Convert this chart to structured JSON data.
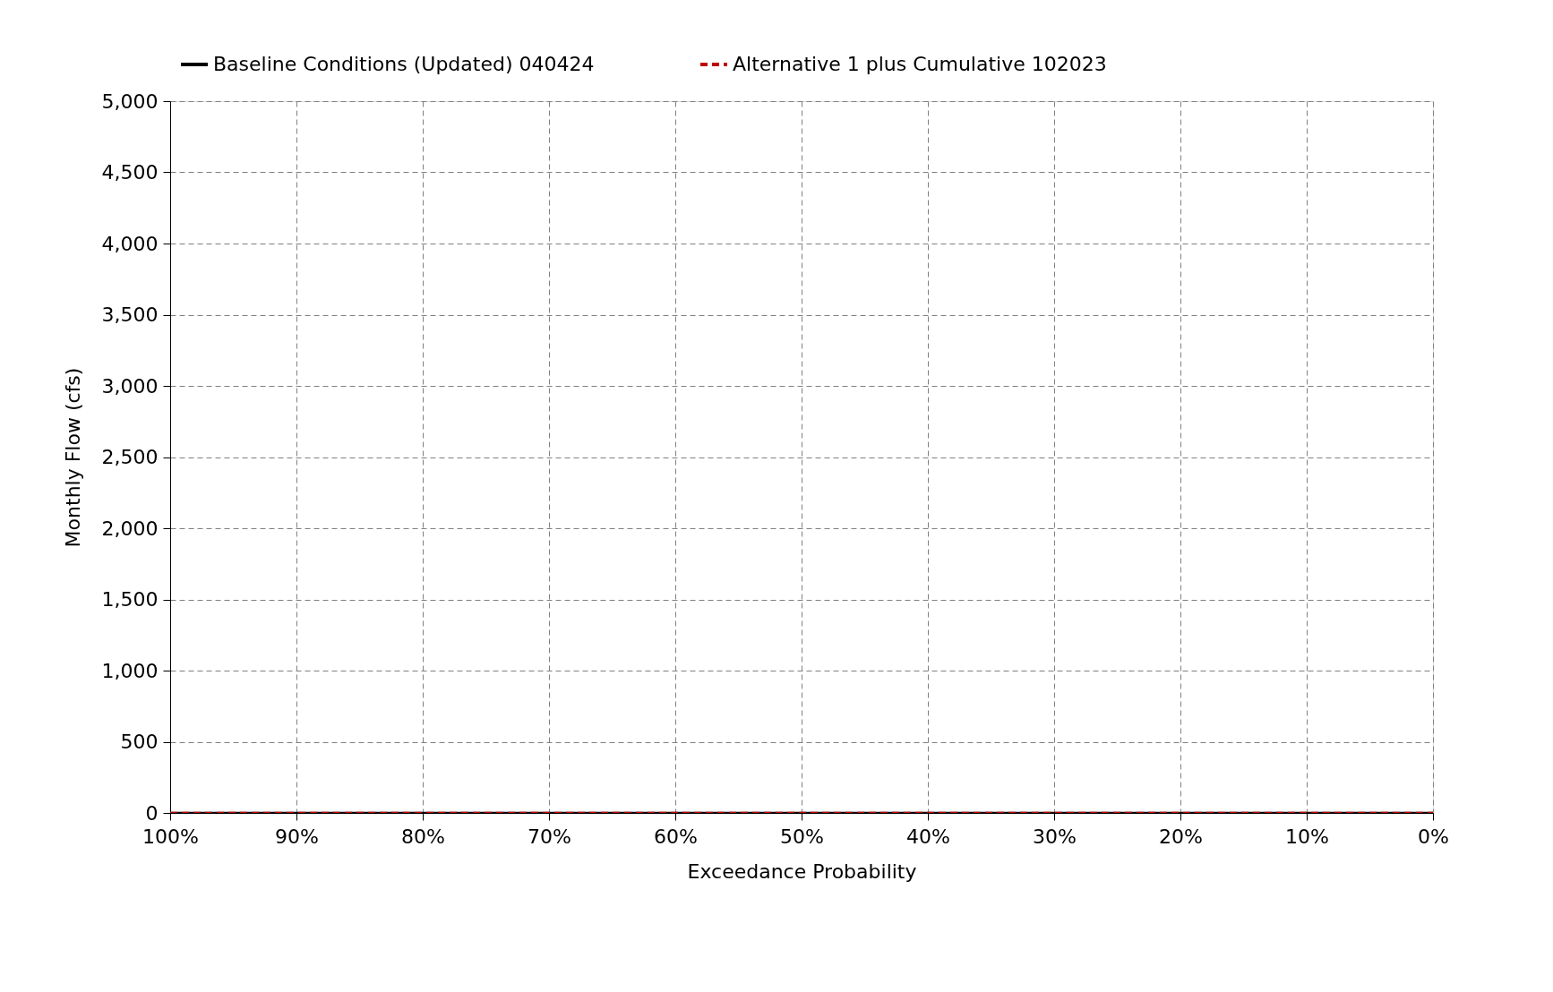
{
  "chart_data": {
    "type": "line",
    "xlabel": "Exceedance Probability",
    "ylabel": "Monthly Flow (cfs)",
    "x": [
      100,
      0
    ],
    "series": [
      {
        "name": "Baseline Conditions (Updated) 040424",
        "color": "#000000",
        "line_style": "solid",
        "values": [
          0,
          0
        ]
      },
      {
        "name": "Alternative 1 plus Cumulative 102023",
        "color": "#c00000",
        "line_style": "dashed",
        "values": [
          0,
          0
        ]
      }
    ],
    "xlim": [
      100,
      0
    ],
    "xticks": [
      {
        "value": 100,
        "label": "100%"
      },
      {
        "value": 90,
        "label": "90%"
      },
      {
        "value": 80,
        "label": "80%"
      },
      {
        "value": 70,
        "label": "70%"
      },
      {
        "value": 60,
        "label": "60%"
      },
      {
        "value": 50,
        "label": "50%"
      },
      {
        "value": 40,
        "label": "40%"
      },
      {
        "value": 30,
        "label": "30%"
      },
      {
        "value": 20,
        "label": "20%"
      },
      {
        "value": 10,
        "label": "10%"
      },
      {
        "value": 0,
        "label": "0%"
      }
    ],
    "ylim": [
      0,
      5000
    ],
    "yticks": [
      0,
      500,
      {
        "value": 1000,
        "label": "1,000"
      },
      {
        "value": 1500,
        "label": "1,500"
      },
      {
        "value": 2000,
        "label": "2,000"
      },
      {
        "value": 2500,
        "label": "2,500"
      },
      {
        "value": 3000,
        "label": "3,000"
      },
      {
        "value": 3500,
        "label": "3,500"
      },
      {
        "value": 4000,
        "label": "4,000"
      },
      {
        "value": 4500,
        "label": "4,500"
      },
      {
        "value": 5000,
        "label": "5,000"
      }
    ],
    "grid": true,
    "legend": "top",
    "marker": "none"
  }
}
